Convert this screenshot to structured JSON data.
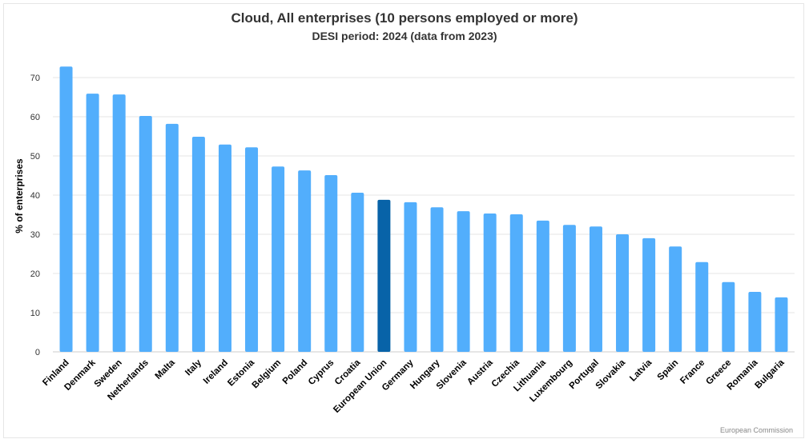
{
  "chart_data": {
    "type": "bar",
    "title": "Cloud, All enterprises (10 persons employed or more)",
    "subtitle": "DESI period: 2024 (data from 2023)",
    "xlabel": "",
    "ylabel": "% of enterprises",
    "ylim": [
      0,
      75
    ],
    "yticks": [
      0,
      10,
      20,
      30,
      40,
      50,
      60,
      70
    ],
    "grid": true,
    "categories": [
      "Finland",
      "Denmark",
      "Sweden",
      "Netherlands",
      "Malta",
      "Italy",
      "Ireland",
      "Estonia",
      "Belgium",
      "Poland",
      "Cyprus",
      "Croatia",
      "European Union",
      "Germany",
      "Hungary",
      "Slovenia",
      "Austria",
      "Czechia",
      "Lithuania",
      "Luxembourg",
      "Portugal",
      "Slovakia",
      "Latvia",
      "Spain",
      "France",
      "Greece",
      "Romania",
      "Bulgaria"
    ],
    "values": [
      72.8,
      65.9,
      65.7,
      60.2,
      58.2,
      54.9,
      52.9,
      52.2,
      47.3,
      46.3,
      45.1,
      40.6,
      38.8,
      38.2,
      36.9,
      35.9,
      35.3,
      35.1,
      33.5,
      32.4,
      32.0,
      30.0,
      29.0,
      26.9,
      22.9,
      17.8,
      15.3,
      13.9
    ],
    "colors": {
      "default": "#52aefc",
      "highlight": "#0863a8"
    },
    "highlight_category": "European Union",
    "credit": "European Commission"
  }
}
